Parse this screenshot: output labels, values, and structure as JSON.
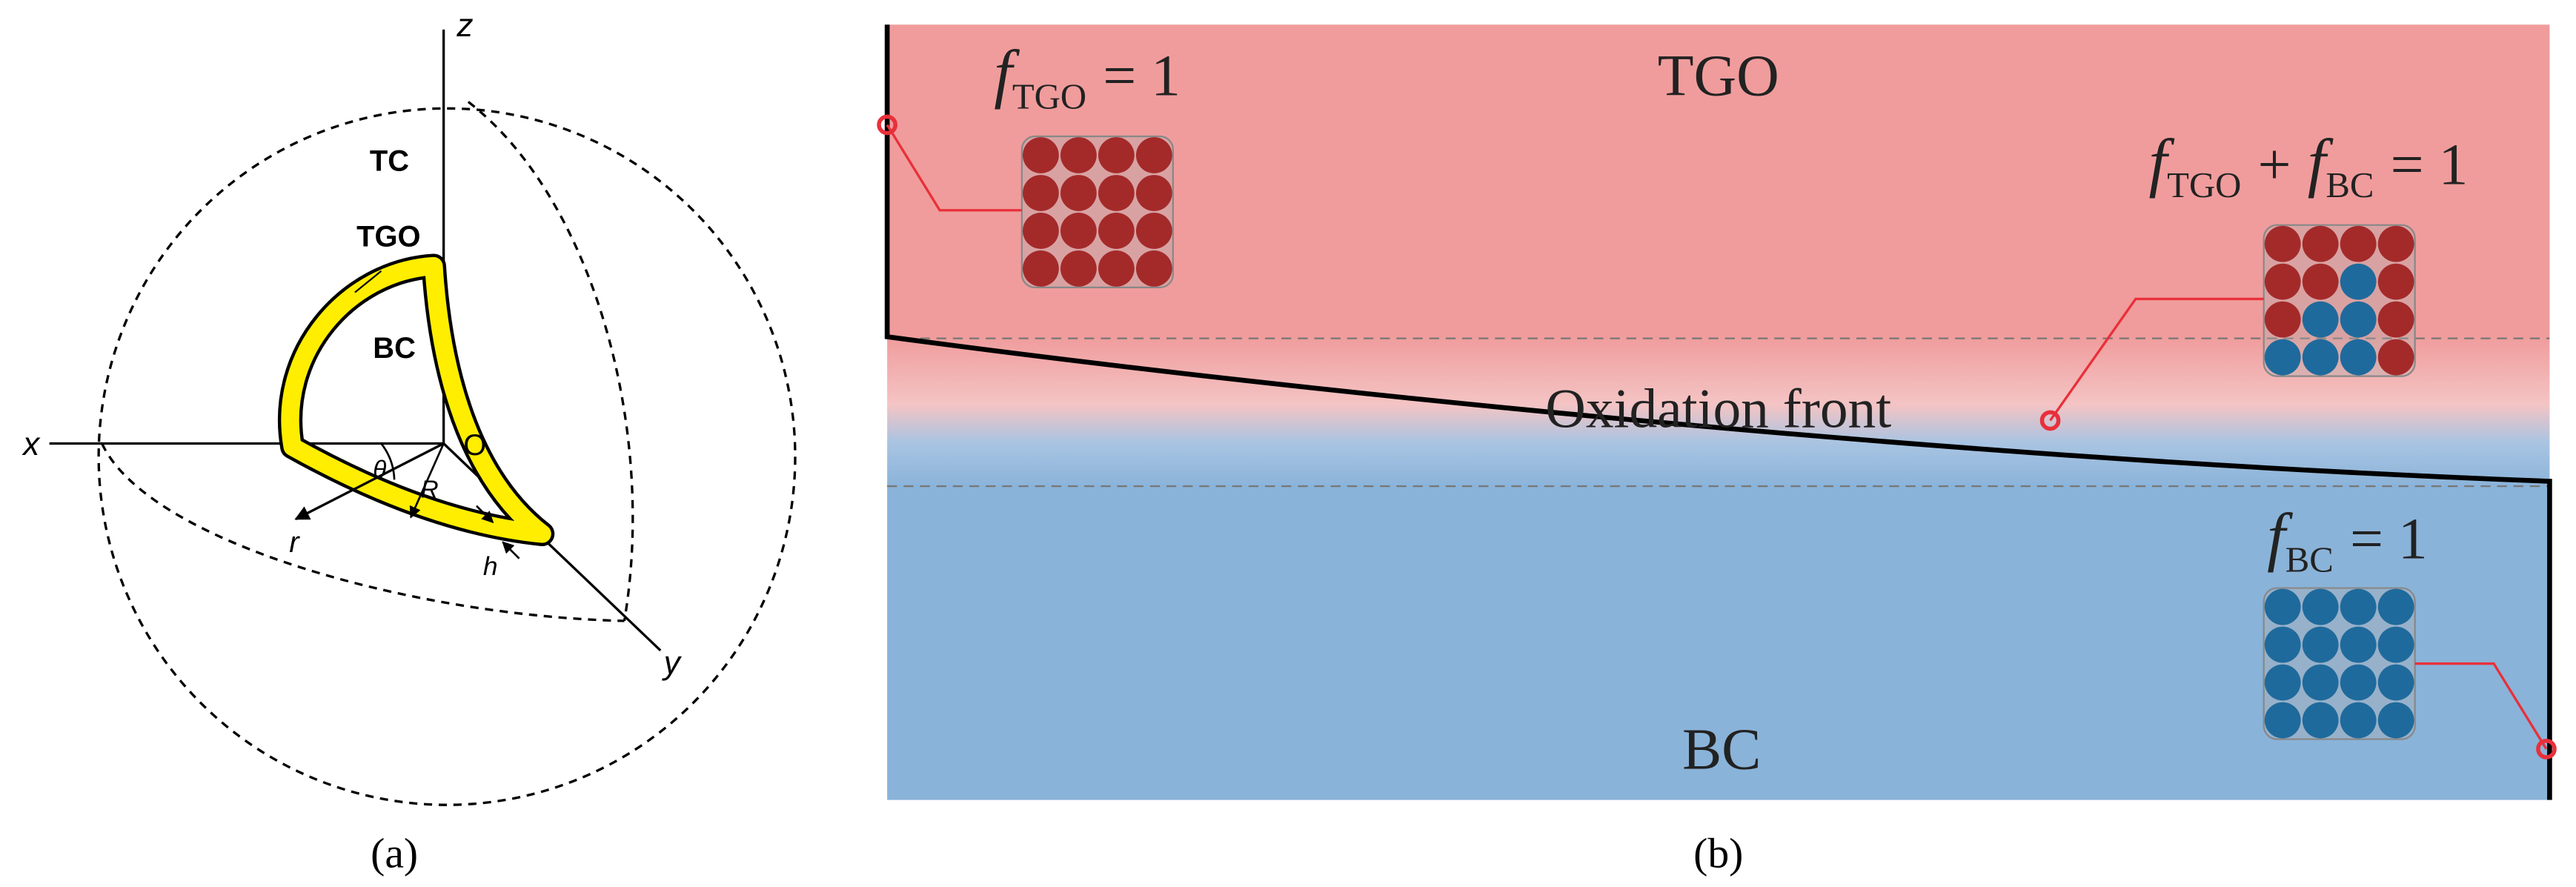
{
  "panel_a": {
    "axes": {
      "z": "z",
      "x": "x",
      "y": "y"
    },
    "labels": {
      "tc": "TC",
      "tgo": "TGO",
      "bc": "BC",
      "origin": "O",
      "theta": "θ",
      "R": "R",
      "r": "r",
      "h": "h"
    },
    "caption": "(a)"
  },
  "panel_b": {
    "regions": {
      "tgo": "TGO",
      "front": "Oxidation front",
      "bc": "BC"
    },
    "equations": [
      {
        "f1": "f",
        "sub1": "TGO",
        "rhs": "= 1"
      },
      {
        "f1": "f",
        "sub1": "TGO",
        "op": "+",
        "f2": "f",
        "sub2": "BC",
        "rhs": "= 1"
      },
      {
        "f1": "f",
        "sub1": "BC",
        "rhs": "= 1"
      }
    ],
    "caption": "(b)"
  }
}
